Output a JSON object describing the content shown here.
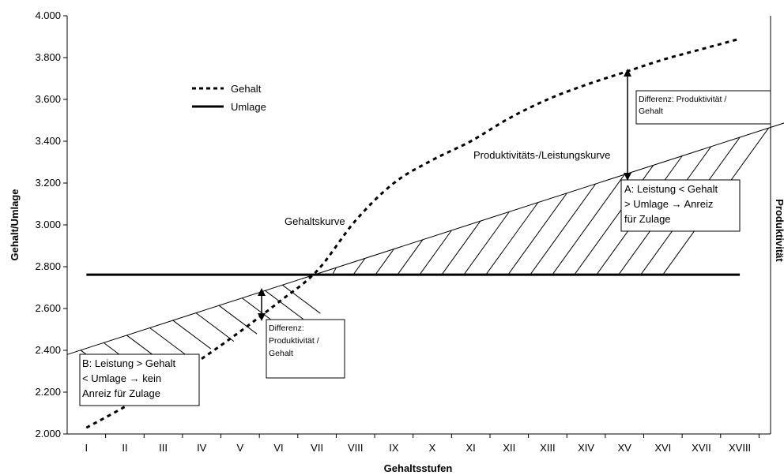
{
  "chart_data": {
    "type": "line",
    "xlabel": "Gehaltsstufen",
    "ylabel": "Gehalt/Umlage",
    "y2label": "Produktivität",
    "ylim": [
      2000,
      4000
    ],
    "ytick_labels": [
      "2.000",
      "2.200",
      "2.400",
      "2.600",
      "2.800",
      "3.000",
      "3.200",
      "3.400",
      "3.600",
      "3.800",
      "4.000"
    ],
    "categories": [
      "I",
      "II",
      "III",
      "IV",
      "V",
      "VI",
      "VII",
      "VIII",
      "IX",
      "X",
      "XI",
      "XII",
      "XIII",
      "XIV",
      "XV",
      "XVI",
      "XVII",
      "XVIII"
    ],
    "series": [
      {
        "name": "Gehalt",
        "style": "dotted",
        "values": [
          2030,
          2130,
          2240,
          2360,
          2490,
          2630,
          2780,
          3020,
          3200,
          3310,
          3400,
          3510,
          3600,
          3670,
          3730,
          3790,
          3840,
          3890
        ]
      },
      {
        "name": "Umlage",
        "style": "solid-thick",
        "values": [
          2762,
          2762,
          2762,
          2762,
          2762,
          2762,
          2762,
          2762,
          2762,
          2762,
          2762,
          2762,
          2762,
          2762,
          2762,
          2762,
          2762,
          2762
        ]
      },
      {
        "name": "",
        "style": "solid-thin",
        "x_start": 0.0,
        "x_end": 18.7,
        "y_start": 2380,
        "y_end": 3490
      }
    ],
    "annotations": {
      "gehaltskurve": "Gehaltskurve",
      "produktivitaet": "Produktivitäts-/Leistungskurve",
      "box_a": [
        "A: Leistung < Gehalt",
        "> Umlage → Anreiz",
        "für Zulage"
      ],
      "box_b": [
        "B: Leistung > Gehalt",
        "< Umlage → kein",
        "Anreiz für Zulage"
      ],
      "diff_right": [
        "Differenz: Produktivität /",
        "Gehalt"
      ],
      "diff_left": [
        "Differenz:",
        "Produktivität /",
        "Gehalt"
      ]
    },
    "legend_position": "top-left",
    "grid": false
  }
}
